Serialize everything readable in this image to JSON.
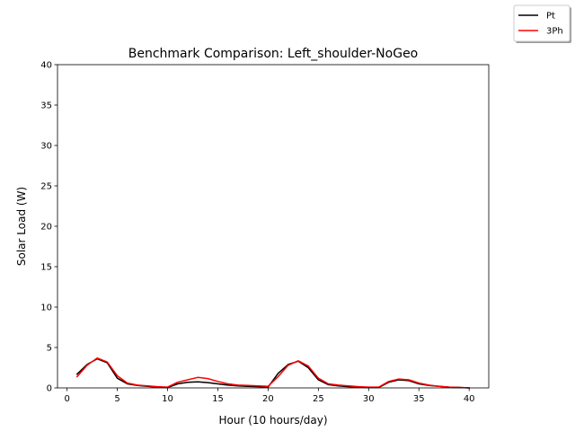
{
  "chart_data": {
    "type": "line",
    "title": "Benchmark Comparison: Left_shoulder-NoGeo",
    "xlabel": "Hour (10 hours/day)",
    "ylabel": "Solar Load (W)",
    "xlim": [
      -0.95,
      41.95
    ],
    "ylim": [
      0,
      40
    ],
    "xticks": [
      0,
      5,
      10,
      15,
      20,
      25,
      30,
      35,
      40
    ],
    "yticks": [
      0,
      5,
      10,
      15,
      20,
      25,
      30,
      35,
      40
    ],
    "grid": false,
    "legend_placement": "top-right outside",
    "x": [
      1,
      2,
      3,
      4,
      5,
      6,
      7,
      8,
      9,
      10,
      11,
      12,
      13,
      14,
      15,
      16,
      17,
      18,
      19,
      20,
      21,
      22,
      23,
      24,
      25,
      26,
      27,
      28,
      29,
      30,
      31,
      32,
      33,
      34,
      35,
      36,
      37,
      38,
      39,
      40
    ],
    "series": [
      {
        "name": "Pt",
        "color": "#000000",
        "values": [
          1.7,
          2.9,
          3.6,
          3.1,
          1.2,
          0.5,
          0.3,
          0.2,
          0.1,
          0.05,
          0.5,
          0.7,
          0.75,
          0.65,
          0.5,
          0.35,
          0.25,
          0.2,
          0.15,
          0.1,
          1.8,
          2.9,
          3.3,
          2.5,
          1.0,
          0.4,
          0.25,
          0.15,
          0.1,
          0.05,
          0.05,
          0.7,
          1.0,
          0.9,
          0.5,
          0.3,
          0.2,
          0.1,
          0.05,
          0.0
        ]
      },
      {
        "name": "3Ph",
        "color": "#ff0000",
        "values": [
          1.4,
          2.8,
          3.7,
          3.2,
          1.5,
          0.6,
          0.35,
          0.25,
          0.15,
          0.1,
          0.7,
          1.0,
          1.3,
          1.15,
          0.8,
          0.5,
          0.35,
          0.3,
          0.25,
          0.2,
          1.4,
          2.8,
          3.35,
          2.7,
          1.2,
          0.5,
          0.35,
          0.25,
          0.15,
          0.1,
          0.1,
          0.8,
          1.1,
          1.0,
          0.6,
          0.35,
          0.2,
          0.1,
          0.05,
          0.0
        ]
      }
    ]
  }
}
